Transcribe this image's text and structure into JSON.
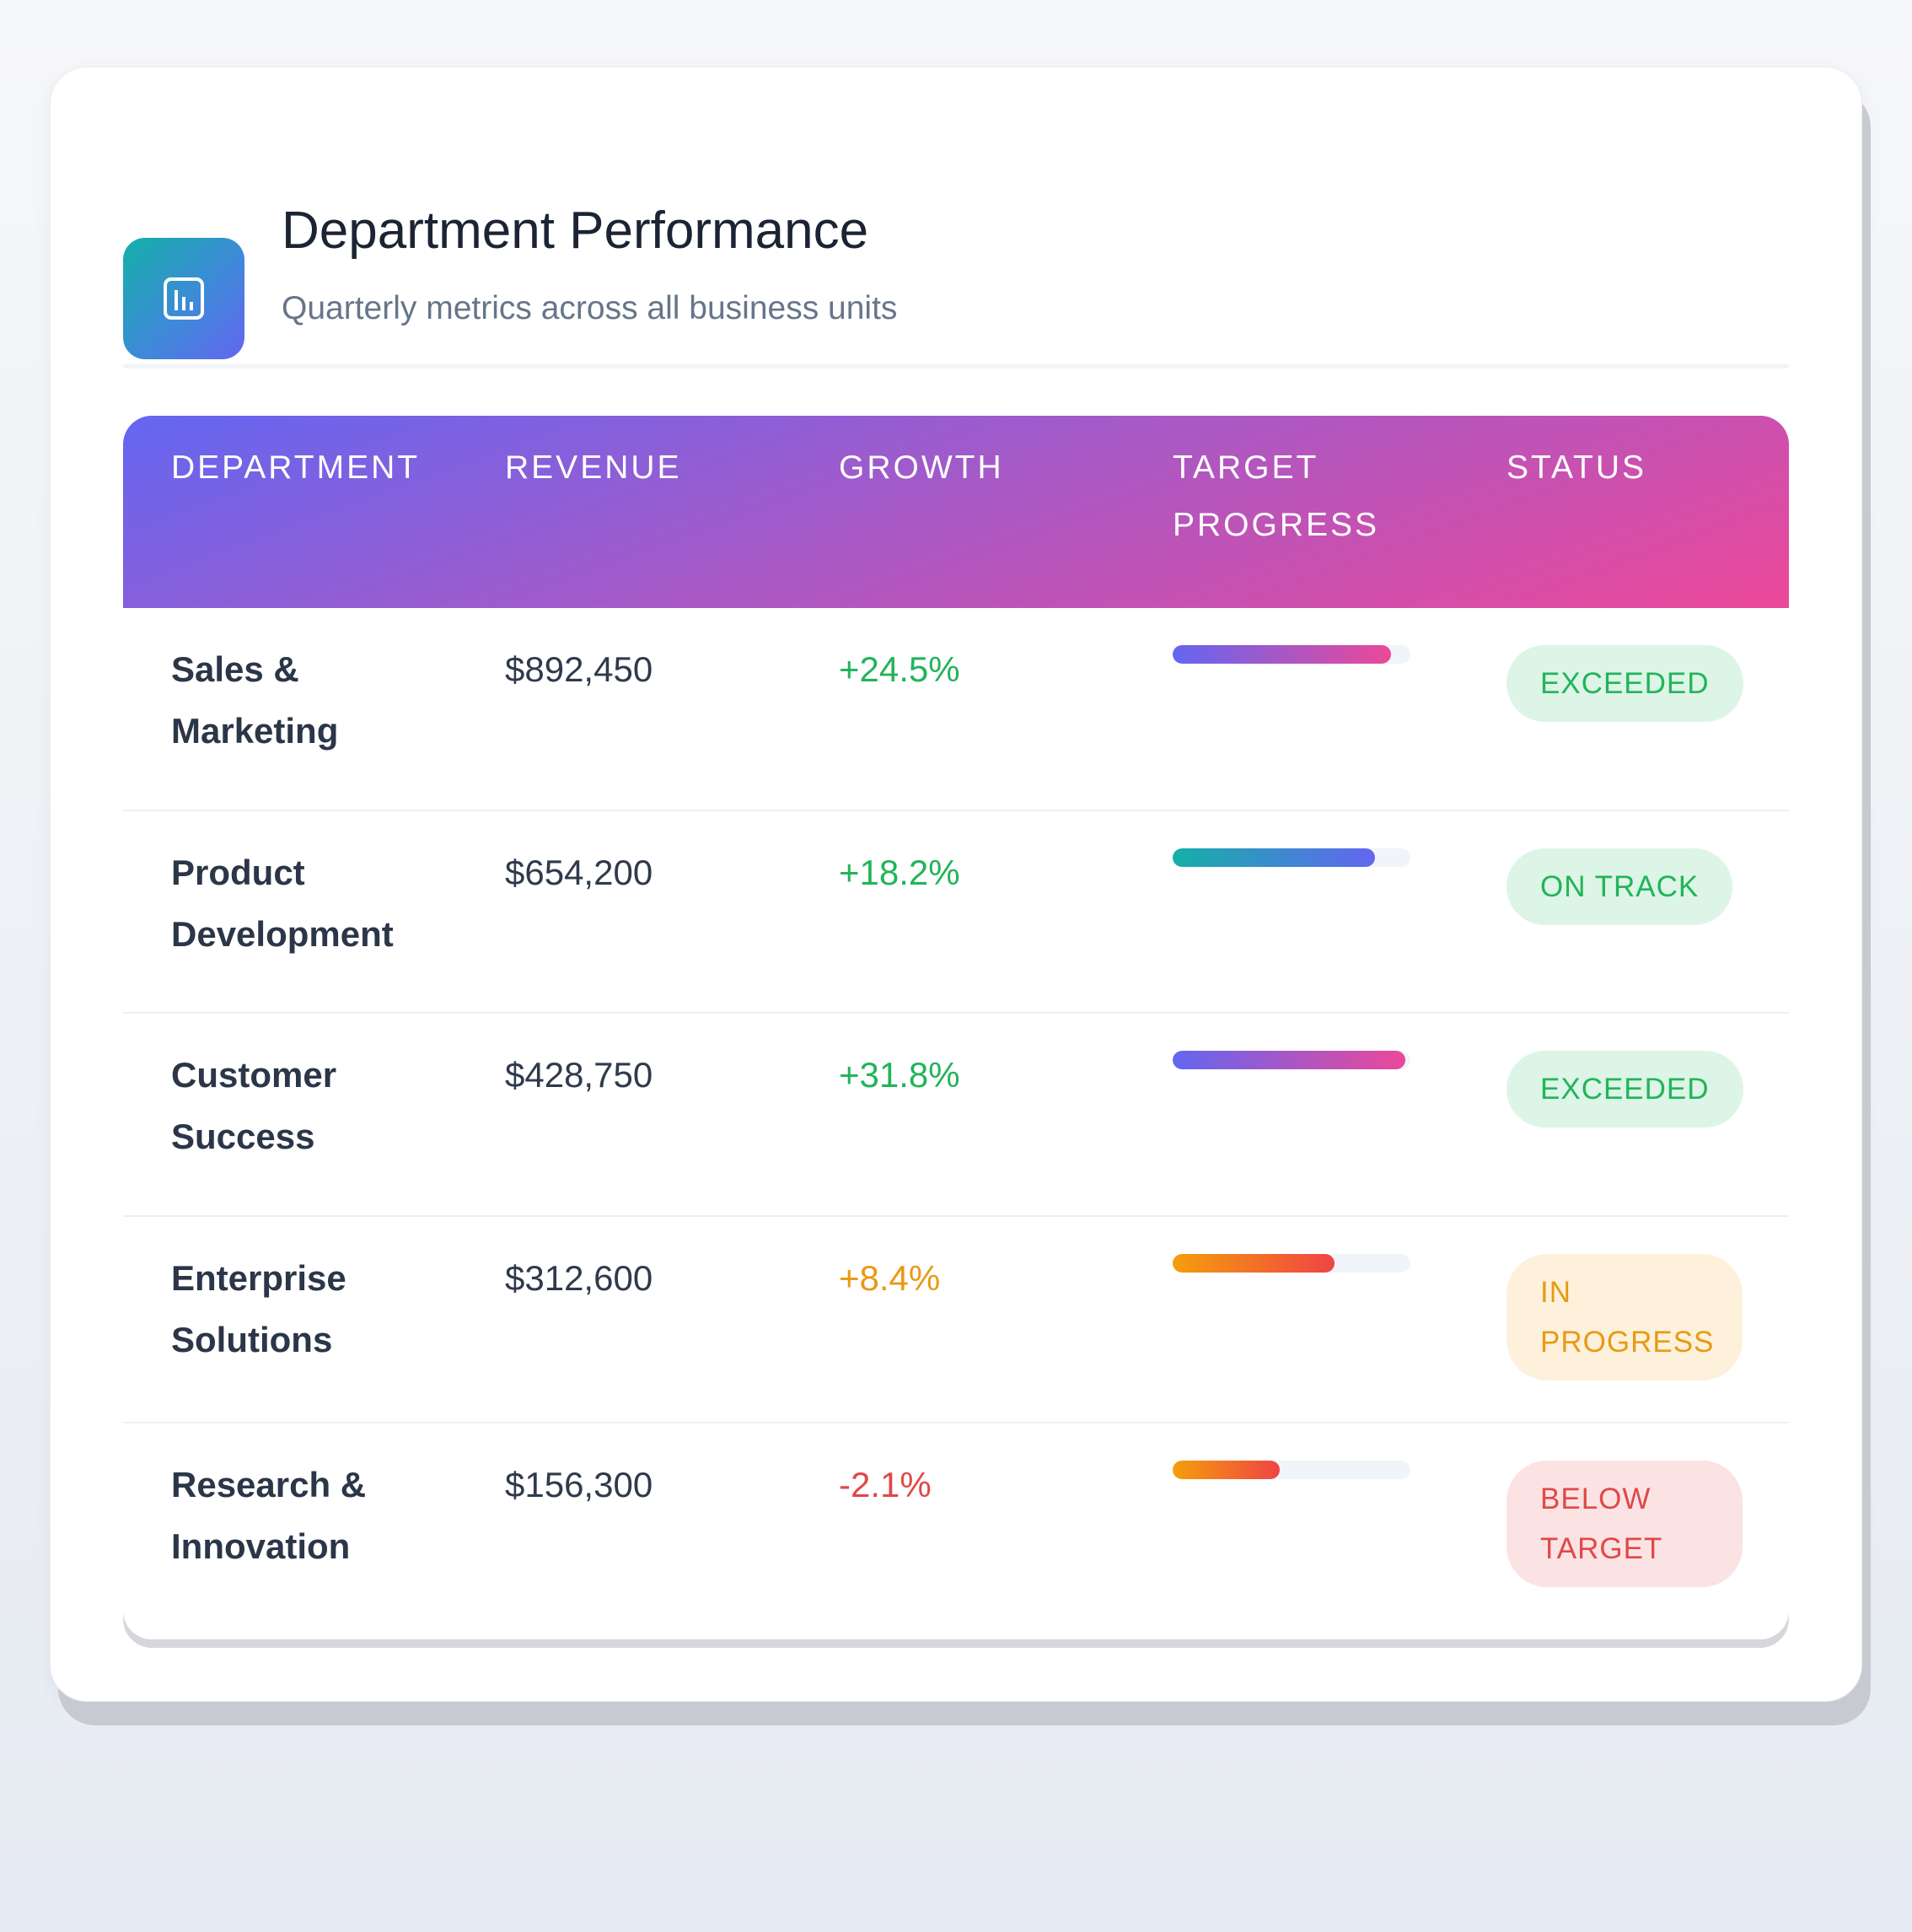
{
  "header": {
    "icon": "bar-chart-icon",
    "title": "Department Performance",
    "subtitle": "Quarterly metrics across all business units"
  },
  "table": {
    "columns": [
      "DEPARTMENT",
      "REVENUE",
      "GROWTH",
      "TARGET PROGRESS",
      "STATUS"
    ],
    "rows": [
      {
        "department": "Sales & Marketing",
        "revenue": "$892,450",
        "growth": "+24.5%",
        "progress": 0.92,
        "status": "EXCEEDED"
      },
      {
        "department": "Product Development",
        "revenue": "$654,200",
        "growth": "+18.2%",
        "progress": 0.85,
        "status": "ON TRACK"
      },
      {
        "department": "Customer Success",
        "revenue": "$428,750",
        "growth": "+31.8%",
        "progress": 0.98,
        "status": "EXCEEDED"
      },
      {
        "department": "Enterprise Solutions",
        "revenue": "$312,600",
        "growth": "+8.4%",
        "progress": 0.68,
        "status": "IN PROGRESS"
      },
      {
        "department": "Research & Innovation",
        "revenue": "$156,300",
        "growth": "-2.1%",
        "progress": 0.45,
        "status": "BELOW TARGET"
      }
    ]
  },
  "colors": {
    "accent_purple": "#6366f1",
    "accent_pink": "#ec4899",
    "positive": "#22b45a",
    "warning": "#e89a14",
    "negative": "#e14848"
  }
}
